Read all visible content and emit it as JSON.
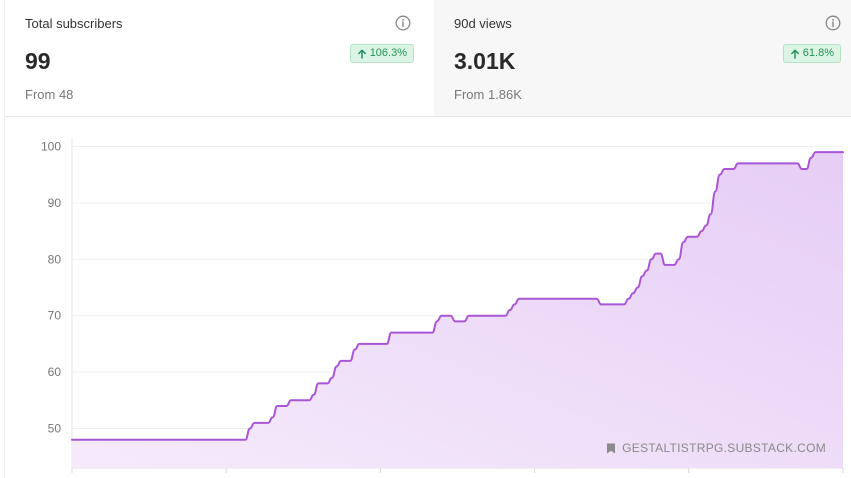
{
  "cards": [
    {
      "label": "Total subscribers",
      "value": "99",
      "change": "106.3%",
      "from": "From 48",
      "info_icon": "info-icon",
      "change_icon": "arrow-up-icon"
    },
    {
      "label": "90d views",
      "value": "3.01K",
      "change": "61.8%",
      "from": "From 1.86K",
      "info_icon": "info-icon",
      "change_icon": "arrow-up-icon"
    }
  ],
  "watermark": {
    "text": "GESTALTISTRPG.SUBSTACK.COM",
    "icon": "bookmark-icon"
  },
  "colors": {
    "line": "#a855d6",
    "fill_top": "#e6cdf5",
    "fill_bottom": "#f5ebfb",
    "badge_bg": "#dcf4e4",
    "badge_text": "#25915a"
  },
  "chart_data": {
    "type": "area",
    "title": "",
    "xlabel": "",
    "ylabel": "",
    "ylim": [
      43,
      101.5
    ],
    "yticks": [
      50,
      60,
      70,
      80,
      90,
      100
    ],
    "grid": true,
    "series": [
      {
        "values": [
          48,
          48,
          48,
          48,
          48,
          48,
          48,
          48,
          48,
          48,
          48,
          48,
          48,
          48,
          48,
          48,
          48,
          48,
          48,
          48,
          48,
          48,
          48,
          48,
          48,
          48,
          48,
          48,
          48,
          48,
          48,
          48,
          48,
          48,
          48,
          48,
          48,
          48,
          48,
          50,
          51,
          51,
          51,
          51,
          52,
          54,
          54,
          54,
          55,
          55,
          55,
          55,
          55,
          56,
          58,
          58,
          58,
          59,
          61,
          62,
          62,
          62,
          64,
          65,
          65,
          65,
          65,
          65,
          65,
          65,
          67,
          67,
          67,
          67,
          67,
          67,
          67,
          67,
          67,
          67,
          69,
          70,
          70,
          70,
          69,
          69,
          69,
          70,
          70,
          70,
          70,
          70,
          70,
          70,
          70,
          70,
          71,
          72,
          73,
          73,
          73,
          73,
          73,
          73,
          73,
          73,
          73,
          73,
          73,
          73,
          73,
          73,
          73,
          73,
          73,
          73,
          72,
          72,
          72,
          72,
          72,
          72,
          73,
          74,
          75,
          77,
          78,
          80,
          81,
          81,
          79,
          79,
          79,
          80,
          83,
          84,
          84,
          84,
          85,
          86,
          88,
          92,
          95,
          96,
          96,
          96,
          97,
          97,
          97,
          97,
          97,
          97,
          97,
          97,
          97,
          97,
          97,
          97,
          97,
          97,
          96,
          96,
          98,
          99,
          99,
          99,
          99,
          99,
          99,
          99
        ]
      }
    ]
  }
}
